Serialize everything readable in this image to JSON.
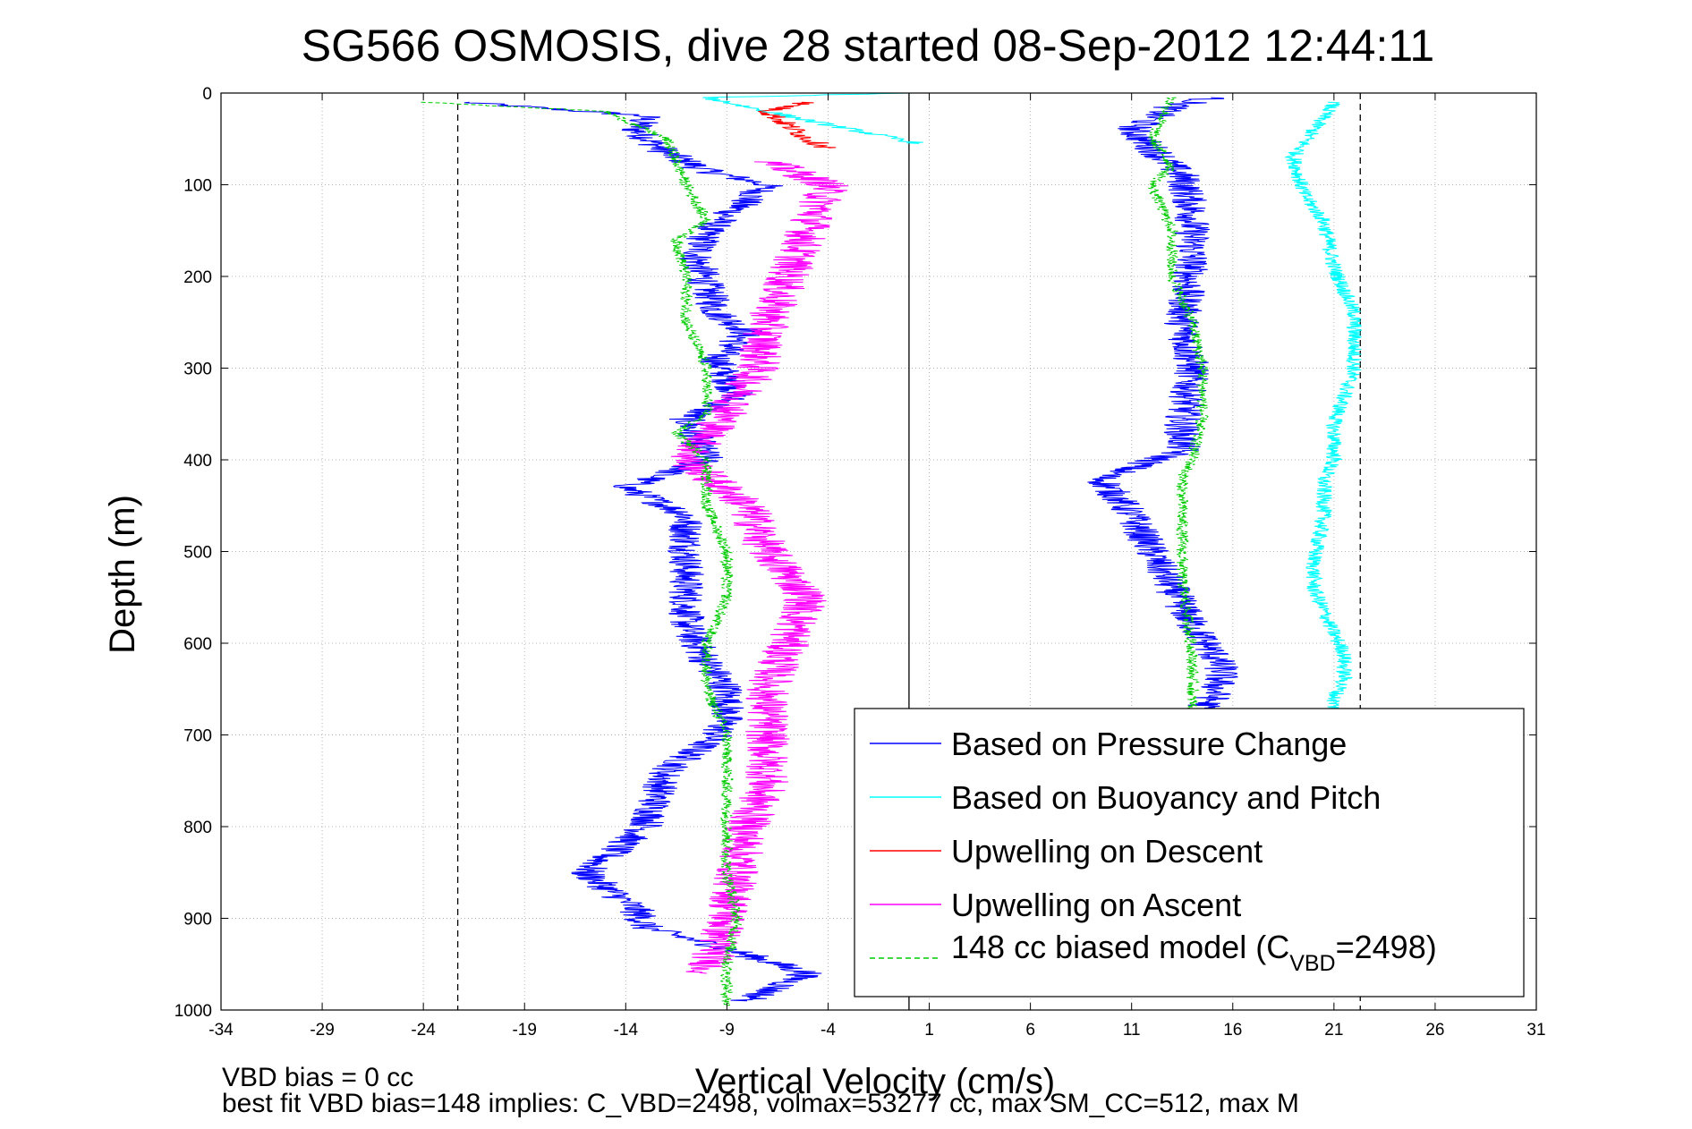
{
  "chart_data": {
    "type": "line",
    "title": "SG566 OSMOSIS, dive 28 started 08-Sep-2012 12:44:11",
    "xlabel": "Vertical Velocity (cm/s)",
    "ylabel": "Depth (m)",
    "xlim": [
      -34,
      31
    ],
    "ylim": [
      0,
      1000
    ],
    "y_reversed": true,
    "grid": true,
    "xticks": [
      "-34",
      "-29",
      "-24",
      "-19",
      "-14",
      "-9",
      "-4",
      "1",
      "6",
      "11",
      "16",
      "21",
      "26",
      "31"
    ],
    "yticks": [
      "0",
      "100",
      "200",
      "300",
      "400",
      "500",
      "600",
      "700",
      "800",
      "900",
      "1000"
    ],
    "reference_lines": [
      {
        "x": 0,
        "style": "solid",
        "color": "#000000"
      },
      {
        "x": -22.3,
        "style": "dashed",
        "color": "#000000"
      },
      {
        "x": 22.3,
        "style": "dashed",
        "color": "#000000"
      }
    ],
    "legend": {
      "placement": "bottom-right",
      "entries": [
        {
          "label": "Based on Pressure Change",
          "color": "#0000ff",
          "style": "solid"
        },
        {
          "label": "Based on Buoyancy and Pitch",
          "color": "#00ffff",
          "style": "solid"
        },
        {
          "label": "Upwelling on Descent",
          "color": "#ff0000",
          "style": "solid"
        },
        {
          "label": "Upwelling on Ascent",
          "color": "#ff00ff",
          "style": "solid"
        },
        {
          "label_main": "148 cc biased model (C",
          "label_sub": "VBD",
          "label_tail": "=2498)",
          "color": "#00cc00",
          "style": "dashed"
        }
      ]
    },
    "series": [
      {
        "color": "#0000ff",
        "noise": 0.9,
        "descent": true,
        "x": [
          -22,
          -13,
          -13.5,
          -12,
          -10,
          -7,
          -10,
          -10.5,
          -9.5,
          -8,
          -9.5,
          -8.5,
          -11,
          -10,
          -14,
          -11,
          -11,
          -11,
          -11,
          -10,
          -9,
          -9,
          -9.5,
          -12,
          -13,
          -16,
          -13.5,
          -13,
          -9.5,
          -5,
          -8
        ],
        "y": [
          10,
          25,
          40,
          65,
          85,
          100,
          150,
          180,
          240,
          260,
          290,
          330,
          355,
          400,
          430,
          460,
          500,
          540,
          580,
          620,
          650,
          680,
          700,
          740,
          800,
          850,
          890,
          910,
          930,
          960,
          990
        ]
      },
      {
        "color": "#0000ff",
        "noise": 0.9,
        "descent": false,
        "x": [
          15,
          13,
          11,
          12,
          13.5,
          14,
          14,
          13.5,
          14,
          13.5,
          13.5,
          9.5,
          11,
          12,
          14,
          15,
          15.5,
          15,
          14
        ],
        "y": [
          5,
          15,
          40,
          60,
          90,
          130,
          180,
          250,
          300,
          360,
          390,
          420,
          460,
          500,
          580,
          610,
          630,
          660,
          680
        ]
      },
      {
        "color": "#00ffff",
        "noise": 0.5,
        "descent": true,
        "x": [
          0,
          -10,
          -5,
          0.5
        ],
        "y": [
          0,
          5,
          30,
          55
        ]
      },
      {
        "color": "#00ffff",
        "noise": 0.4,
        "descent": false,
        "x": [
          21,
          19,
          19.5,
          20.5,
          21,
          22,
          22,
          21,
          21,
          20.5,
          20.5,
          20,
          20,
          21,
          21.5,
          21.5,
          21,
          21
        ],
        "y": [
          10,
          70,
          110,
          140,
          190,
          240,
          300,
          360,
          400,
          420,
          460,
          510,
          540,
          590,
          610,
          640,
          660,
          680
        ]
      },
      {
        "color": "#ff0000",
        "noise": 0.6,
        "descent": true,
        "x": [
          -5,
          -7,
          -6,
          -5,
          -4
        ],
        "y": [
          10,
          20,
          35,
          50,
          60
        ]
      },
      {
        "color": "#ff00ff",
        "noise": 1.1,
        "descent": true,
        "x": [
          -7,
          -4,
          -5,
          -6,
          -7,
          -7.5,
          -9,
          -11,
          -8,
          -7,
          -5,
          -6,
          -7,
          -7,
          -7,
          -8,
          -9,
          -10
        ],
        "y": [
          75,
          100,
          150,
          200,
          250,
          300,
          350,
          400,
          450,
          500,
          550,
          600,
          650,
          700,
          750,
          800,
          900,
          960
        ]
      },
      {
        "color": "#00cc00",
        "noise": 0.3,
        "descent": true,
        "x": [
          -24,
          -15,
          -12,
          -11,
          -10,
          -11.5,
          -11,
          -11,
          -10,
          -10,
          -11.5,
          -11,
          -10,
          -10,
          -9,
          -9,
          -10,
          -10,
          -9,
          -9,
          -9,
          -9,
          -9,
          -8.5,
          -9,
          -9,
          -9
        ],
        "y": [
          10,
          20,
          50,
          100,
          140,
          160,
          200,
          250,
          300,
          350,
          370,
          380,
          400,
          450,
          500,
          550,
          600,
          650,
          700,
          720,
          750,
          800,
          850,
          900,
          950,
          980,
          995
        ]
      },
      {
        "color": "#00cc00",
        "noise": 0.3,
        "descent": false,
        "x": [
          13,
          12,
          13,
          12,
          13,
          13,
          14,
          14.5,
          14.5,
          14,
          13.5,
          13.5,
          13.5,
          13.5,
          14,
          14,
          14,
          14
        ],
        "y": [
          5,
          50,
          80,
          100,
          150,
          200,
          250,
          300,
          350,
          400,
          420,
          450,
          500,
          530,
          610,
          640,
          660,
          680
        ]
      }
    ]
  },
  "footer": {
    "line1": "VBD bias = 0 cc",
    "line2": "best fit VBD bias=148 implies: C_VBD=2498, volmax=53277 cc, max SM_CC=512, max M"
  }
}
